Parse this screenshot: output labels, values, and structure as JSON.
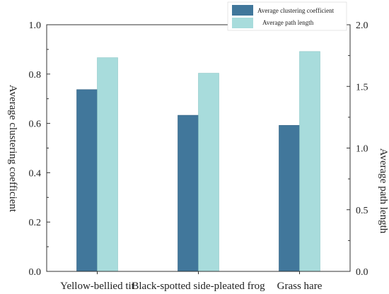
{
  "chart_data": {
    "type": "bar",
    "categories": [
      "Yellow-bellied tit",
      "Black-spotted side-pleated frog",
      "Grass hare"
    ],
    "series": [
      {
        "name": "Average clustering coefficient",
        "axis": "left",
        "color": "#41779b",
        "values": [
          0.737,
          0.633,
          0.592
        ]
      },
      {
        "name": "Average path length",
        "axis": "right",
        "color": "#a8dcdc",
        "values": [
          1.733,
          1.607,
          1.783
        ]
      }
    ],
    "ylabel": "Average clustering coefficient",
    "ylabel_right": "Average path length",
    "ylim": [
      0,
      1.0
    ],
    "ylim_right": [
      0,
      2.0
    ],
    "yticks": [
      "0.0",
      "0.2",
      "0.4",
      "0.6",
      "0.8",
      "1.0"
    ],
    "yticks_right": [
      "0.0",
      "0.5",
      "1.0",
      "1.5",
      "2.0"
    ],
    "legend_position": "top-right",
    "grid": false
  }
}
